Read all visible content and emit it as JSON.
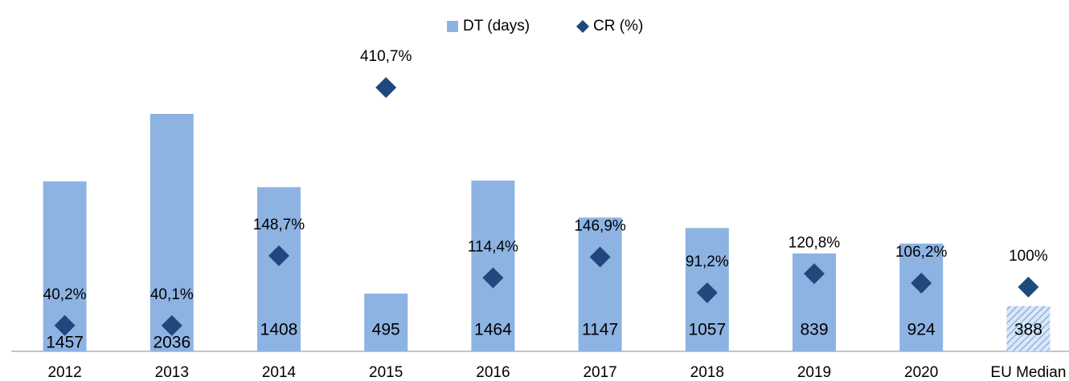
{
  "chart_data": {
    "type": "bar",
    "categories": [
      "2012",
      "2013",
      "2014",
      "2015",
      "2016",
      "2017",
      "2018",
      "2019",
      "2020",
      "EU Median"
    ],
    "series": [
      {
        "name": "DT (days)",
        "type": "bar",
        "color": "#8db3e2",
        "values": [
          1457,
          2036,
          1408,
          495,
          1464,
          1147,
          1057,
          839,
          924,
          388
        ],
        "patterns": [
          null,
          null,
          null,
          null,
          null,
          null,
          null,
          null,
          null,
          "hatched"
        ]
      },
      {
        "name": "CR (%)",
        "type": "scatter",
        "marker": "diamond",
        "axis": "y2",
        "color": "#1f497d",
        "values": [
          40.2,
          40.1,
          148.7,
          410.7,
          114.4,
          146.9,
          91.2,
          120.8,
          106.2,
          100
        ],
        "value_labels": [
          "40,2%",
          "40,1%",
          "148,7%",
          "410,7%",
          "114,4%",
          "146,9%",
          "91,2%",
          "120,8%",
          "106,2%",
          "100%"
        ]
      }
    ],
    "ylim": [
      0,
      2600
    ],
    "y2lim": [
      0,
      472
    ],
    "legend": "top"
  }
}
